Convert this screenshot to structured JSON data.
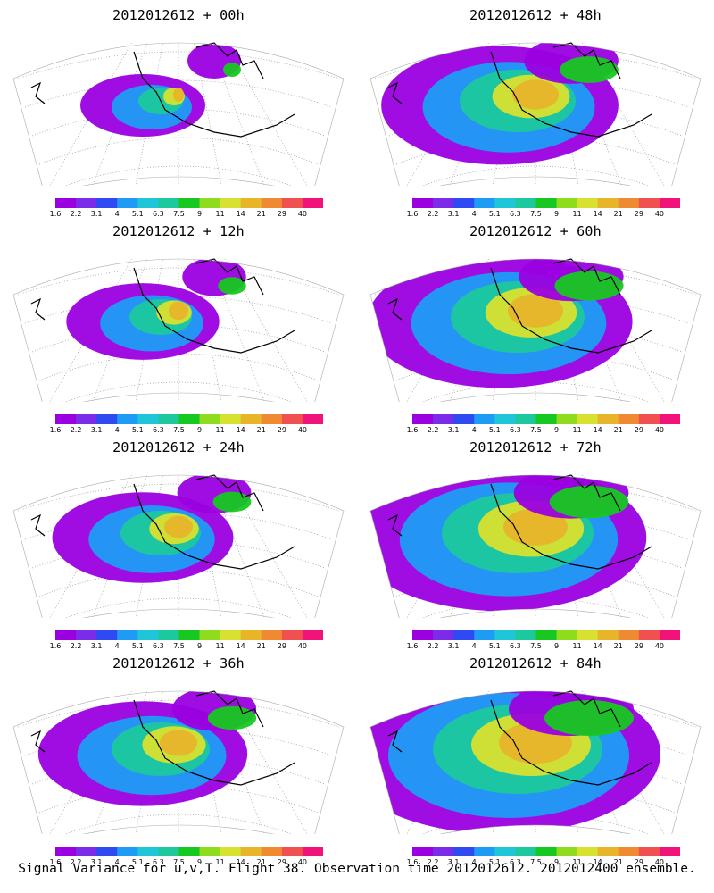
{
  "panels": [
    {
      "title": "2012012612 + 00h",
      "lead": 0
    },
    {
      "title": "2012012612 + 48h",
      "lead": 48
    },
    {
      "title": "2012012612 + 12h",
      "lead": 12
    },
    {
      "title": "2012012612 + 60h",
      "lead": 60
    },
    {
      "title": "2012012612 + 24h",
      "lead": 24
    },
    {
      "title": "2012012612 + 72h",
      "lead": 72
    },
    {
      "title": "2012012612 + 36h",
      "lead": 36
    },
    {
      "title": "2012012612 + 84h",
      "lead": 84
    }
  ],
  "colorbar": {
    "labels": [
      "1.6",
      "2.2",
      "3.1",
      "4",
      "5.1",
      "6.3",
      "7.5",
      "9",
      "11",
      "14",
      "21",
      "29",
      "40"
    ],
    "colors": [
      "#9b00e0",
      "#7a2ce8",
      "#2d4bf0",
      "#1e9cf5",
      "#1fc6d8",
      "#1ec89e",
      "#17c821",
      "#8fdc1e",
      "#d8e030",
      "#e7b42a",
      "#ef8a32",
      "#f05050",
      "#f0147a"
    ]
  },
  "footer": "Signal Variance for u,v,T. Flight 38. Observation time 2012012612. 2012012400 ensemble."
}
